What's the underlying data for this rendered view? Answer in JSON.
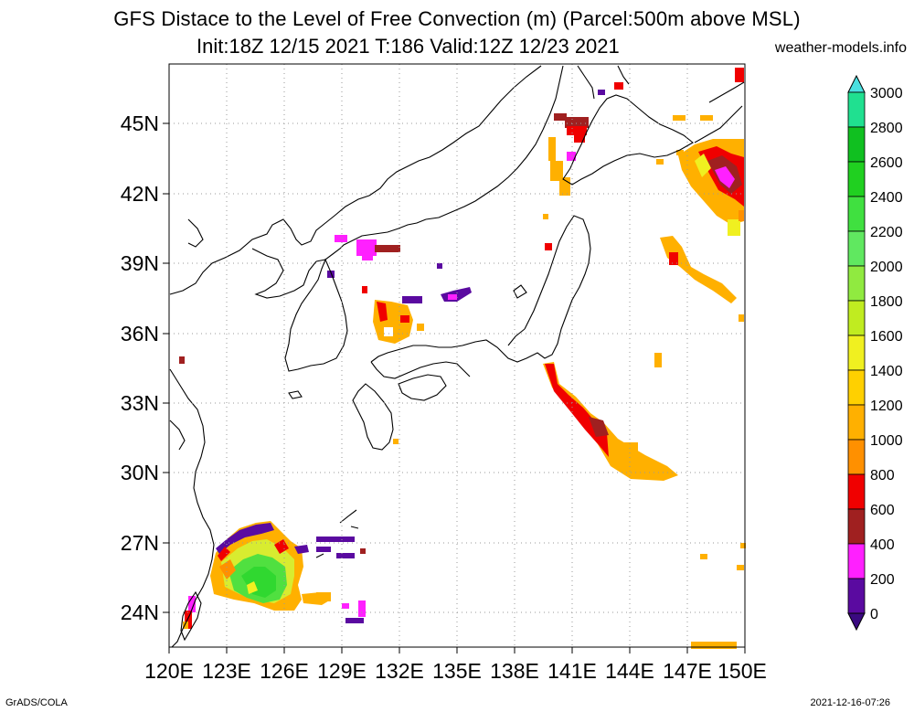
{
  "header": {
    "title": "GFS Distace to the Level of Free Convection (m) (Parcel:500m above MSL)",
    "subtitle": "Init:18Z 12/15 2021 T:186 Valid:12Z 12/23 2021",
    "site": "weather-models.info"
  },
  "footer": {
    "left": "GrADS/COLA",
    "right": "2021-12-16-07:26"
  },
  "map": {
    "lat_labels": [
      "45N",
      "42N",
      "39N",
      "36N",
      "33N",
      "30N",
      "27N",
      "24N"
    ],
    "lon_labels": [
      "120E",
      "123E",
      "126E",
      "129E",
      "132E",
      "135E",
      "138E",
      "141E",
      "144E",
      "147E",
      "150E"
    ],
    "lat_range": [
      22.5,
      47.5
    ],
    "lon_range": [
      120,
      150
    ],
    "grid": true
  },
  "colorbar": {
    "labels": [
      "3000",
      "2800",
      "2600",
      "2400",
      "2200",
      "2000",
      "1800",
      "1600",
      "1400",
      "1200",
      "1000",
      "800",
      "600",
      "400",
      "200",
      "0"
    ],
    "colors": [
      "#20d0d0",
      "#20e090",
      "#10c020",
      "#20d020",
      "#40e040",
      "#60e860",
      "#90ea40",
      "#c0ec20",
      "#f0f020",
      "#ffd000",
      "#ffb000",
      "#ff9000",
      "#f00000",
      "#a02020",
      "#ff20ff",
      "#5a0aa0"
    ],
    "top_color": "#4ae0e0",
    "bottom_color": "#3a0a80"
  }
}
